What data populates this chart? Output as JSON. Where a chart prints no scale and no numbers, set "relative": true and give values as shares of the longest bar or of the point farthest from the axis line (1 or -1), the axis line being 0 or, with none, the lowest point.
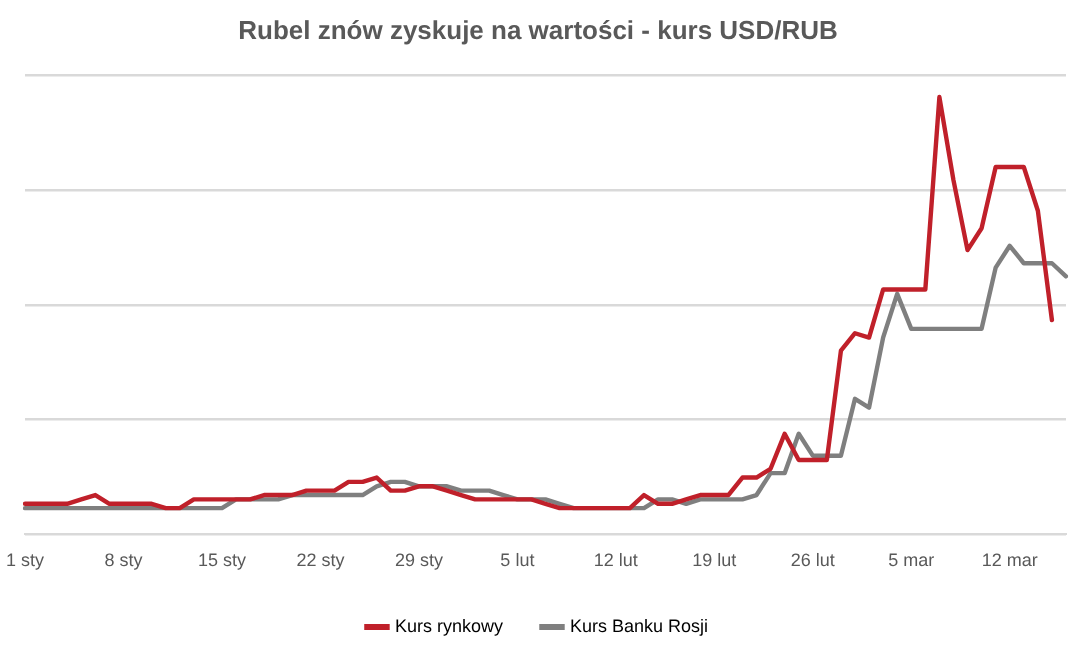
{
  "chart_data": {
    "type": "line",
    "title": "Rubel znów zyskuje na wartości - kurs USD/RUB",
    "relative": true,
    "grid": "y",
    "legend": "bottom",
    "marker": "none",
    "line_style": "solid",
    "categories": [
      "1 sty",
      null,
      null,
      null,
      null,
      null,
      null,
      "8 sty",
      null,
      null,
      null,
      null,
      null,
      null,
      "15 sty",
      null,
      null,
      null,
      null,
      null,
      null,
      "22 sty",
      null,
      null,
      null,
      null,
      null,
      null,
      "29 sty",
      null,
      null,
      null,
      null,
      null,
      null,
      "5 lut",
      null,
      null,
      null,
      null,
      null,
      null,
      "12 lut",
      null,
      null,
      null,
      null,
      null,
      null,
      "19 lut",
      null,
      null,
      null,
      null,
      null,
      null,
      "26 lut",
      null,
      null,
      null,
      null,
      null,
      null,
      "5 mar",
      null,
      null,
      null,
      null,
      null,
      null,
      "12 mar",
      null,
      null,
      null,
      null
    ],
    "series": [
      {
        "name": "Kurs rynkowy",
        "color": "#c0202a",
        "values": [
          0.07,
          0.07,
          0.07,
          0.07,
          0.08,
          0.09,
          0.07,
          0.07,
          0.07,
          0.07,
          0.06,
          0.06,
          0.08,
          0.08,
          0.08,
          0.08,
          0.08,
          0.09,
          0.09,
          0.09,
          0.1,
          0.1,
          0.1,
          0.12,
          0.12,
          0.13,
          0.1,
          0.1,
          0.11,
          0.11,
          0.1,
          0.09,
          0.08,
          0.08,
          0.08,
          0.08,
          0.08,
          0.07,
          0.06,
          0.06,
          0.06,
          0.06,
          0.06,
          0.06,
          0.09,
          0.07,
          0.07,
          0.08,
          0.09,
          0.09,
          0.09,
          0.13,
          0.13,
          0.15,
          0.23,
          0.17,
          0.17,
          0.17,
          0.42,
          0.46,
          0.45,
          0.56,
          0.56,
          0.56,
          0.56,
          1,
          0.81,
          0.65,
          0.7,
          0.84,
          0.84,
          0.84,
          0.74,
          0.49,
          null
        ]
      },
      {
        "name": "Kurs Banku Rosji",
        "color": "#7f7f7f",
        "values": [
          0.06,
          0.06,
          0.06,
          0.06,
          0.06,
          0.06,
          0.06,
          0.06,
          0.06,
          0.06,
          0.06,
          0.06,
          0.06,
          0.06,
          0.06,
          0.08,
          0.08,
          0.08,
          0.08,
          0.09,
          0.09,
          0.09,
          0.09,
          0.09,
          0.09,
          0.11,
          0.12,
          0.12,
          0.11,
          0.11,
          0.11,
          0.1,
          0.1,
          0.1,
          0.09,
          0.08,
          0.08,
          0.08,
          0.07,
          0.06,
          0.06,
          0.06,
          0.06,
          0.06,
          0.06,
          0.08,
          0.08,
          0.07,
          0.08,
          0.08,
          0.08,
          0.08,
          0.09,
          0.14,
          0.14,
          0.23,
          0.18,
          0.18,
          0.18,
          0.31,
          0.29,
          0.45,
          0.55,
          0.47,
          0.47,
          0.47,
          0.47,
          0.47,
          0.47,
          0.61,
          0.66,
          0.62,
          0.62,
          0.62,
          0.59
        ]
      }
    ]
  }
}
